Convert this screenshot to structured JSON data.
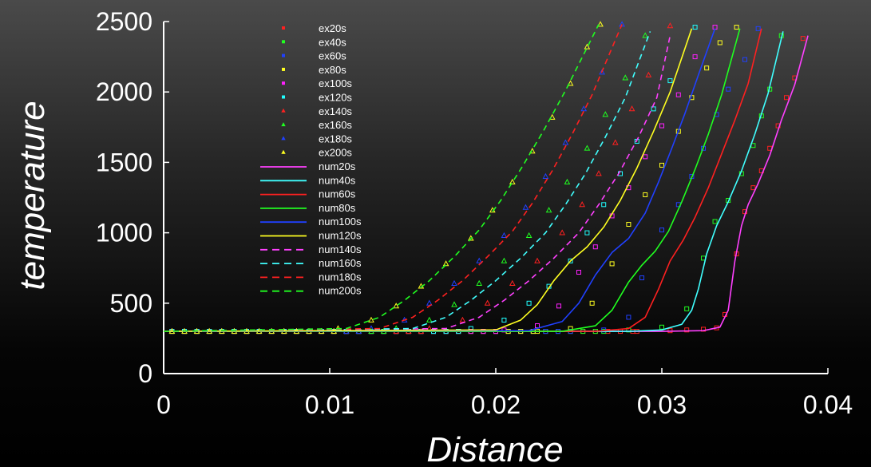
{
  "chart_data": {
    "type": "line",
    "title": "",
    "xlabel": "Distance",
    "ylabel": "temperature",
    "xlim": [
      0,
      0.04
    ],
    "ylim": [
      0,
      2500
    ],
    "x_ticks": [
      "0",
      "0.01",
      "0.02",
      "0.03",
      "0.04"
    ],
    "y_ticks": [
      "0",
      "500",
      "1000",
      "1500",
      "2000",
      "2500"
    ],
    "grid": false,
    "legend_position": "top-left",
    "series": [
      {
        "name": "ex20s",
        "kind": "markers",
        "marker": "square",
        "color": "#ff2020",
        "x": [
          0.0285,
          0.0305,
          0.0315,
          0.0325,
          0.0333,
          0.0338,
          0.0345,
          0.035,
          0.0355,
          0.036,
          0.0365,
          0.037,
          0.0375,
          0.038,
          0.0385
        ],
        "y": [
          300,
          305,
          310,
          315,
          325,
          420,
          850,
          1150,
          1320,
          1440,
          1600,
          1760,
          1960,
          2100,
          2380
        ]
      },
      {
        "name": "ex40s",
        "kind": "markers",
        "marker": "square",
        "color": "#20ff20",
        "x": [
          0.0265,
          0.028,
          0.03,
          0.0315,
          0.0325,
          0.0332,
          0.034,
          0.0348,
          0.0355,
          0.036,
          0.0365,
          0.0372
        ],
        "y": [
          300,
          310,
          330,
          460,
          820,
          1080,
          1230,
          1420,
          1620,
          1830,
          2020,
          2400
        ]
      },
      {
        "name": "ex60s",
        "kind": "markers",
        "marker": "square",
        "color": "#2040ff",
        "x": [
          0.0245,
          0.0265,
          0.028,
          0.0288,
          0.03,
          0.031,
          0.0318,
          0.0325,
          0.0333,
          0.034,
          0.035,
          0.0358
        ],
        "y": [
          300,
          310,
          400,
          680,
          1020,
          1200,
          1400,
          1600,
          1840,
          2020,
          2230,
          2450
        ]
      },
      {
        "name": "ex80s",
        "kind": "markers",
        "marker": "square",
        "color": "#ffff20",
        "x": [
          0.0225,
          0.0245,
          0.0258,
          0.027,
          0.028,
          0.029,
          0.03,
          0.031,
          0.0318,
          0.0327,
          0.0335,
          0.0345
        ],
        "y": [
          300,
          320,
          500,
          780,
          1060,
          1270,
          1480,
          1720,
          1960,
          2170,
          2350,
          2460
        ]
      },
      {
        "name": "ex100s",
        "kind": "markers",
        "marker": "square",
        "color": "#ff20ff",
        "x": [
          0.0205,
          0.0225,
          0.0238,
          0.025,
          0.026,
          0.027,
          0.028,
          0.029,
          0.03,
          0.031,
          0.032,
          0.0332
        ],
        "y": [
          310,
          340,
          480,
          720,
          900,
          1120,
          1320,
          1540,
          1760,
          1980,
          2250,
          2460
        ]
      },
      {
        "name": "ex120s",
        "kind": "markers",
        "marker": "square",
        "color": "#20ffff",
        "x": [
          0.0185,
          0.0205,
          0.022,
          0.0232,
          0.0245,
          0.0255,
          0.0265,
          0.0275,
          0.0285,
          0.0295,
          0.0305,
          0.032
        ],
        "y": [
          320,
          380,
          500,
          620,
          800,
          1000,
          1200,
          1420,
          1650,
          1880,
          2080,
          2460
        ]
      },
      {
        "name": "ex140s",
        "kind": "markers",
        "marker": "triangle",
        "color": "#ff2020",
        "x": [
          0.016,
          0.018,
          0.0195,
          0.021,
          0.0225,
          0.024,
          0.0252,
          0.0262,
          0.0272,
          0.0282,
          0.0292,
          0.0305
        ],
        "y": [
          320,
          380,
          500,
          640,
          800,
          1000,
          1200,
          1420,
          1640,
          1880,
          2120,
          2470
        ]
      },
      {
        "name": "ex160s",
        "kind": "markers",
        "marker": "triangle",
        "color": "#20ff20",
        "x": [
          0.014,
          0.016,
          0.0175,
          0.019,
          0.0205,
          0.022,
          0.0232,
          0.0243,
          0.0255,
          0.0266,
          0.0278,
          0.029
        ],
        "y": [
          320,
          380,
          490,
          640,
          800,
          980,
          1160,
          1360,
          1600,
          1840,
          2100,
          2400
        ]
      },
      {
        "name": "ex180s",
        "kind": "markers",
        "marker": "triangle",
        "color": "#2040ff",
        "x": [
          0.0125,
          0.0145,
          0.016,
          0.0175,
          0.019,
          0.0205,
          0.0218,
          0.023,
          0.0242,
          0.0253,
          0.0264,
          0.0276
        ],
        "y": [
          320,
          380,
          500,
          640,
          800,
          980,
          1180,
          1400,
          1640,
          1880,
          2140,
          2480
        ]
      },
      {
        "name": "ex200s",
        "kind": "markers",
        "marker": "triangle",
        "color": "#ffff20",
        "x": [
          0.0105,
          0.0125,
          0.014,
          0.0155,
          0.017,
          0.0185,
          0.0198,
          0.021,
          0.0222,
          0.0234,
          0.0245,
          0.0255,
          0.0263
        ],
        "y": [
          320,
          380,
          480,
          620,
          780,
          960,
          1160,
          1360,
          1580,
          1820,
          2060,
          2320,
          2480
        ]
      },
      {
        "name": "num20s",
        "kind": "line",
        "dash": "solid",
        "color": "#ff40ff",
        "x": [
          0,
          0.03,
          0.0325,
          0.0335,
          0.034,
          0.0344,
          0.0348,
          0.0352,
          0.0358,
          0.0365,
          0.0372,
          0.038,
          0.0388
        ],
        "y": [
          300,
          300,
          305,
          330,
          450,
          800,
          1050,
          1200,
          1350,
          1550,
          1800,
          2050,
          2400
        ]
      },
      {
        "name": "num40s",
        "kind": "line",
        "dash": "solid",
        "color": "#40ffff",
        "x": [
          0,
          0.028,
          0.03,
          0.0312,
          0.0318,
          0.0322,
          0.0327,
          0.0333,
          0.034,
          0.0348,
          0.0356,
          0.0364,
          0.0373
        ],
        "y": [
          300,
          300,
          310,
          350,
          450,
          600,
          850,
          1050,
          1220,
          1440,
          1700,
          1990,
          2430
        ]
      },
      {
        "name": "num60s",
        "kind": "line",
        "dash": "solid",
        "color": "#ff2020",
        "x": [
          0,
          0.026,
          0.028,
          0.029,
          0.0298,
          0.0305,
          0.0313,
          0.032,
          0.0328,
          0.0336,
          0.0344,
          0.0352,
          0.036
        ],
        "y": [
          300,
          300,
          320,
          400,
          600,
          800,
          950,
          1110,
          1320,
          1560,
          1800,
          2060,
          2450
        ]
      },
      {
        "name": "num80s",
        "kind": "line",
        "dash": "solid",
        "color": "#20ff20",
        "x": [
          0,
          0.024,
          0.026,
          0.027,
          0.028,
          0.0288,
          0.0296,
          0.0304,
          0.0312,
          0.032,
          0.0328,
          0.0336,
          0.0347
        ],
        "y": [
          300,
          300,
          340,
          450,
          650,
          770,
          870,
          1010,
          1220,
          1450,
          1700,
          1980,
          2450
        ]
      },
      {
        "name": "num100s",
        "kind": "line",
        "dash": "solid",
        "color": "#2040ff",
        "x": [
          0,
          0.022,
          0.024,
          0.025,
          0.026,
          0.027,
          0.028,
          0.029,
          0.0298,
          0.0306,
          0.0314,
          0.0322,
          0.0332
        ],
        "y": [
          300,
          305,
          370,
          500,
          700,
          860,
          960,
          1140,
          1360,
          1600,
          1850,
          2120,
          2450
        ]
      },
      {
        "name": "num120s",
        "kind": "line",
        "dash": "solid",
        "color": "#ffff20",
        "x": [
          0,
          0.02,
          0.0215,
          0.0225,
          0.0235,
          0.0245,
          0.0255,
          0.0265,
          0.0275,
          0.0285,
          0.0295,
          0.0305,
          0.0318
        ],
        "y": [
          300,
          310,
          380,
          490,
          660,
          800,
          900,
          1040,
          1230,
          1460,
          1720,
          2000,
          2450
        ]
      },
      {
        "name": "num140s",
        "kind": "line",
        "dash": "dashed",
        "color": "#ff40ff",
        "x": [
          0,
          0.017,
          0.019,
          0.0205,
          0.022,
          0.0235,
          0.025,
          0.0262,
          0.0274,
          0.0286,
          0.0297,
          0.0305
        ],
        "y": [
          300,
          320,
          400,
          520,
          660,
          820,
          1000,
          1200,
          1420,
          1680,
          1960,
          2400
        ]
      },
      {
        "name": "num160s",
        "kind": "line",
        "dash": "dashed",
        "color": "#40ffff",
        "x": [
          0,
          0.015,
          0.017,
          0.0185,
          0.02,
          0.0215,
          0.023,
          0.0242,
          0.0254,
          0.0266,
          0.0278,
          0.0293
        ],
        "y": [
          300,
          320,
          400,
          520,
          660,
          820,
          1000,
          1200,
          1420,
          1680,
          1960,
          2430
        ]
      },
      {
        "name": "num180s",
        "kind": "line",
        "dash": "dashed",
        "color": "#ff2020",
        "x": [
          0,
          0.013,
          0.015,
          0.0165,
          0.018,
          0.0195,
          0.021,
          0.0222,
          0.0234,
          0.0246,
          0.0258,
          0.0276
        ],
        "y": [
          300,
          320,
          400,
          520,
          660,
          830,
          1010,
          1210,
          1440,
          1700,
          1980,
          2480
        ]
      },
      {
        "name": "num200s",
        "kind": "line",
        "dash": "dashed",
        "color": "#20ff20",
        "x": [
          0,
          0.011,
          0.013,
          0.0145,
          0.016,
          0.0175,
          0.019,
          0.0203,
          0.0216,
          0.0229,
          0.0242,
          0.0262
        ],
        "y": [
          300,
          320,
          400,
          520,
          660,
          830,
          1020,
          1230,
          1470,
          1730,
          2010,
          2480
        ]
      }
    ]
  }
}
